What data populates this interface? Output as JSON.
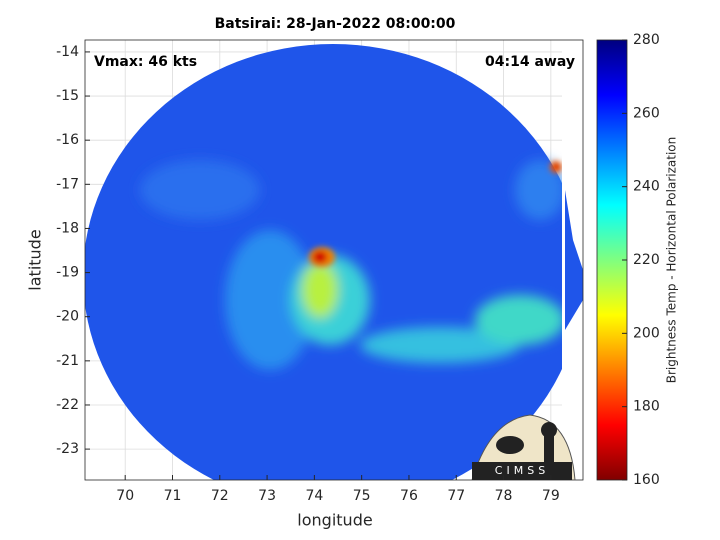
{
  "chart_data": {
    "type": "heatmap",
    "title": "Batsirai: 28-Jan-2022 08:00:00",
    "annotations": [
      "Vmax: 46 kts",
      "04:14 away"
    ],
    "xlabel": "longitude",
    "ylabel": "latitude",
    "xlim": [
      69.15,
      79.68
    ],
    "xticks": [
      70,
      71,
      72,
      73,
      74,
      75,
      76,
      77,
      78,
      79
    ],
    "ylim": [
      -23.7,
      -13.73
    ],
    "yticks": [
      -14,
      -15,
      -16,
      -17,
      -18,
      -19,
      -20,
      -21,
      -22,
      -23
    ],
    "grid": true,
    "colorbar": {
      "label": "Brightness Temp - Horizontal Polarization",
      "colormap": "jet",
      "clim": [
        160,
        280
      ],
      "ticks": [
        160,
        180,
        200,
        220,
        240,
        260,
        280
      ]
    },
    "logo": "CIMSS"
  }
}
